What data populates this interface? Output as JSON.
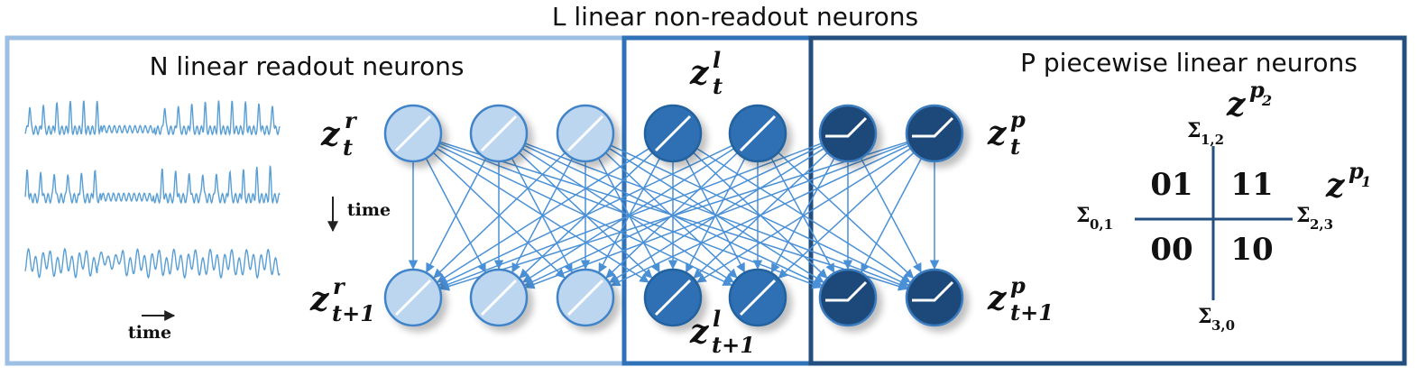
{
  "titles": {
    "top": "L linear non-readout neurons",
    "readout": "N linear readout neurons",
    "piecewise": "P piecewise linear neurons"
  },
  "labels": {
    "z_r_t": {
      "base": "z",
      "sup": "r",
      "sub": "t"
    },
    "z_r_t1": {
      "base": "z",
      "sup": "r",
      "sub": "t+1"
    },
    "z_l_t": {
      "base": "z",
      "sup": "l",
      "sub": "t"
    },
    "z_l_t1": {
      "base": "z",
      "sup": "l",
      "sub": "t+1"
    },
    "z_p_t": {
      "base": "z",
      "sup": "p",
      "sub": "t"
    },
    "z_p_t1": {
      "base": "z",
      "sup": "p",
      "sub": "t+1"
    }
  },
  "time_labels": {
    "vertical": "time",
    "horizontal": "time"
  },
  "quadrant": {
    "regions": {
      "top_left": "01",
      "top_right": "11",
      "bottom_left": "00",
      "bottom_right": "10"
    },
    "axis_labels": {
      "vertical": {
        "base": "z",
        "sup": "p",
        "supsub": "2"
      },
      "horizontal": {
        "base": "z",
        "sup": "p",
        "supsub": "1"
      }
    },
    "boundaries": {
      "top": {
        "base": "Σ",
        "sub": "1,2"
      },
      "left": {
        "base": "Σ",
        "sub": "0,1"
      },
      "right": {
        "base": "Σ",
        "sub": "2,3"
      },
      "bottom": {
        "base": "Σ",
        "sub": "3,0"
      }
    }
  },
  "colors": {
    "readout_frame": "#9dbfe3",
    "nonreadout_frame": "#2f72b8",
    "piecewise_frame": "#224f80",
    "readout_fill": "#bcd6ef",
    "readout_stroke": "#3f83c9",
    "linear_fill": "#2f6fb3",
    "linear_stroke": "#24629e",
    "piecewise_fill": "#1f4a79",
    "piecewise_stroke": "#3a7cc0",
    "edges": "#4a90d6",
    "trace": "#5a9fd4"
  }
}
